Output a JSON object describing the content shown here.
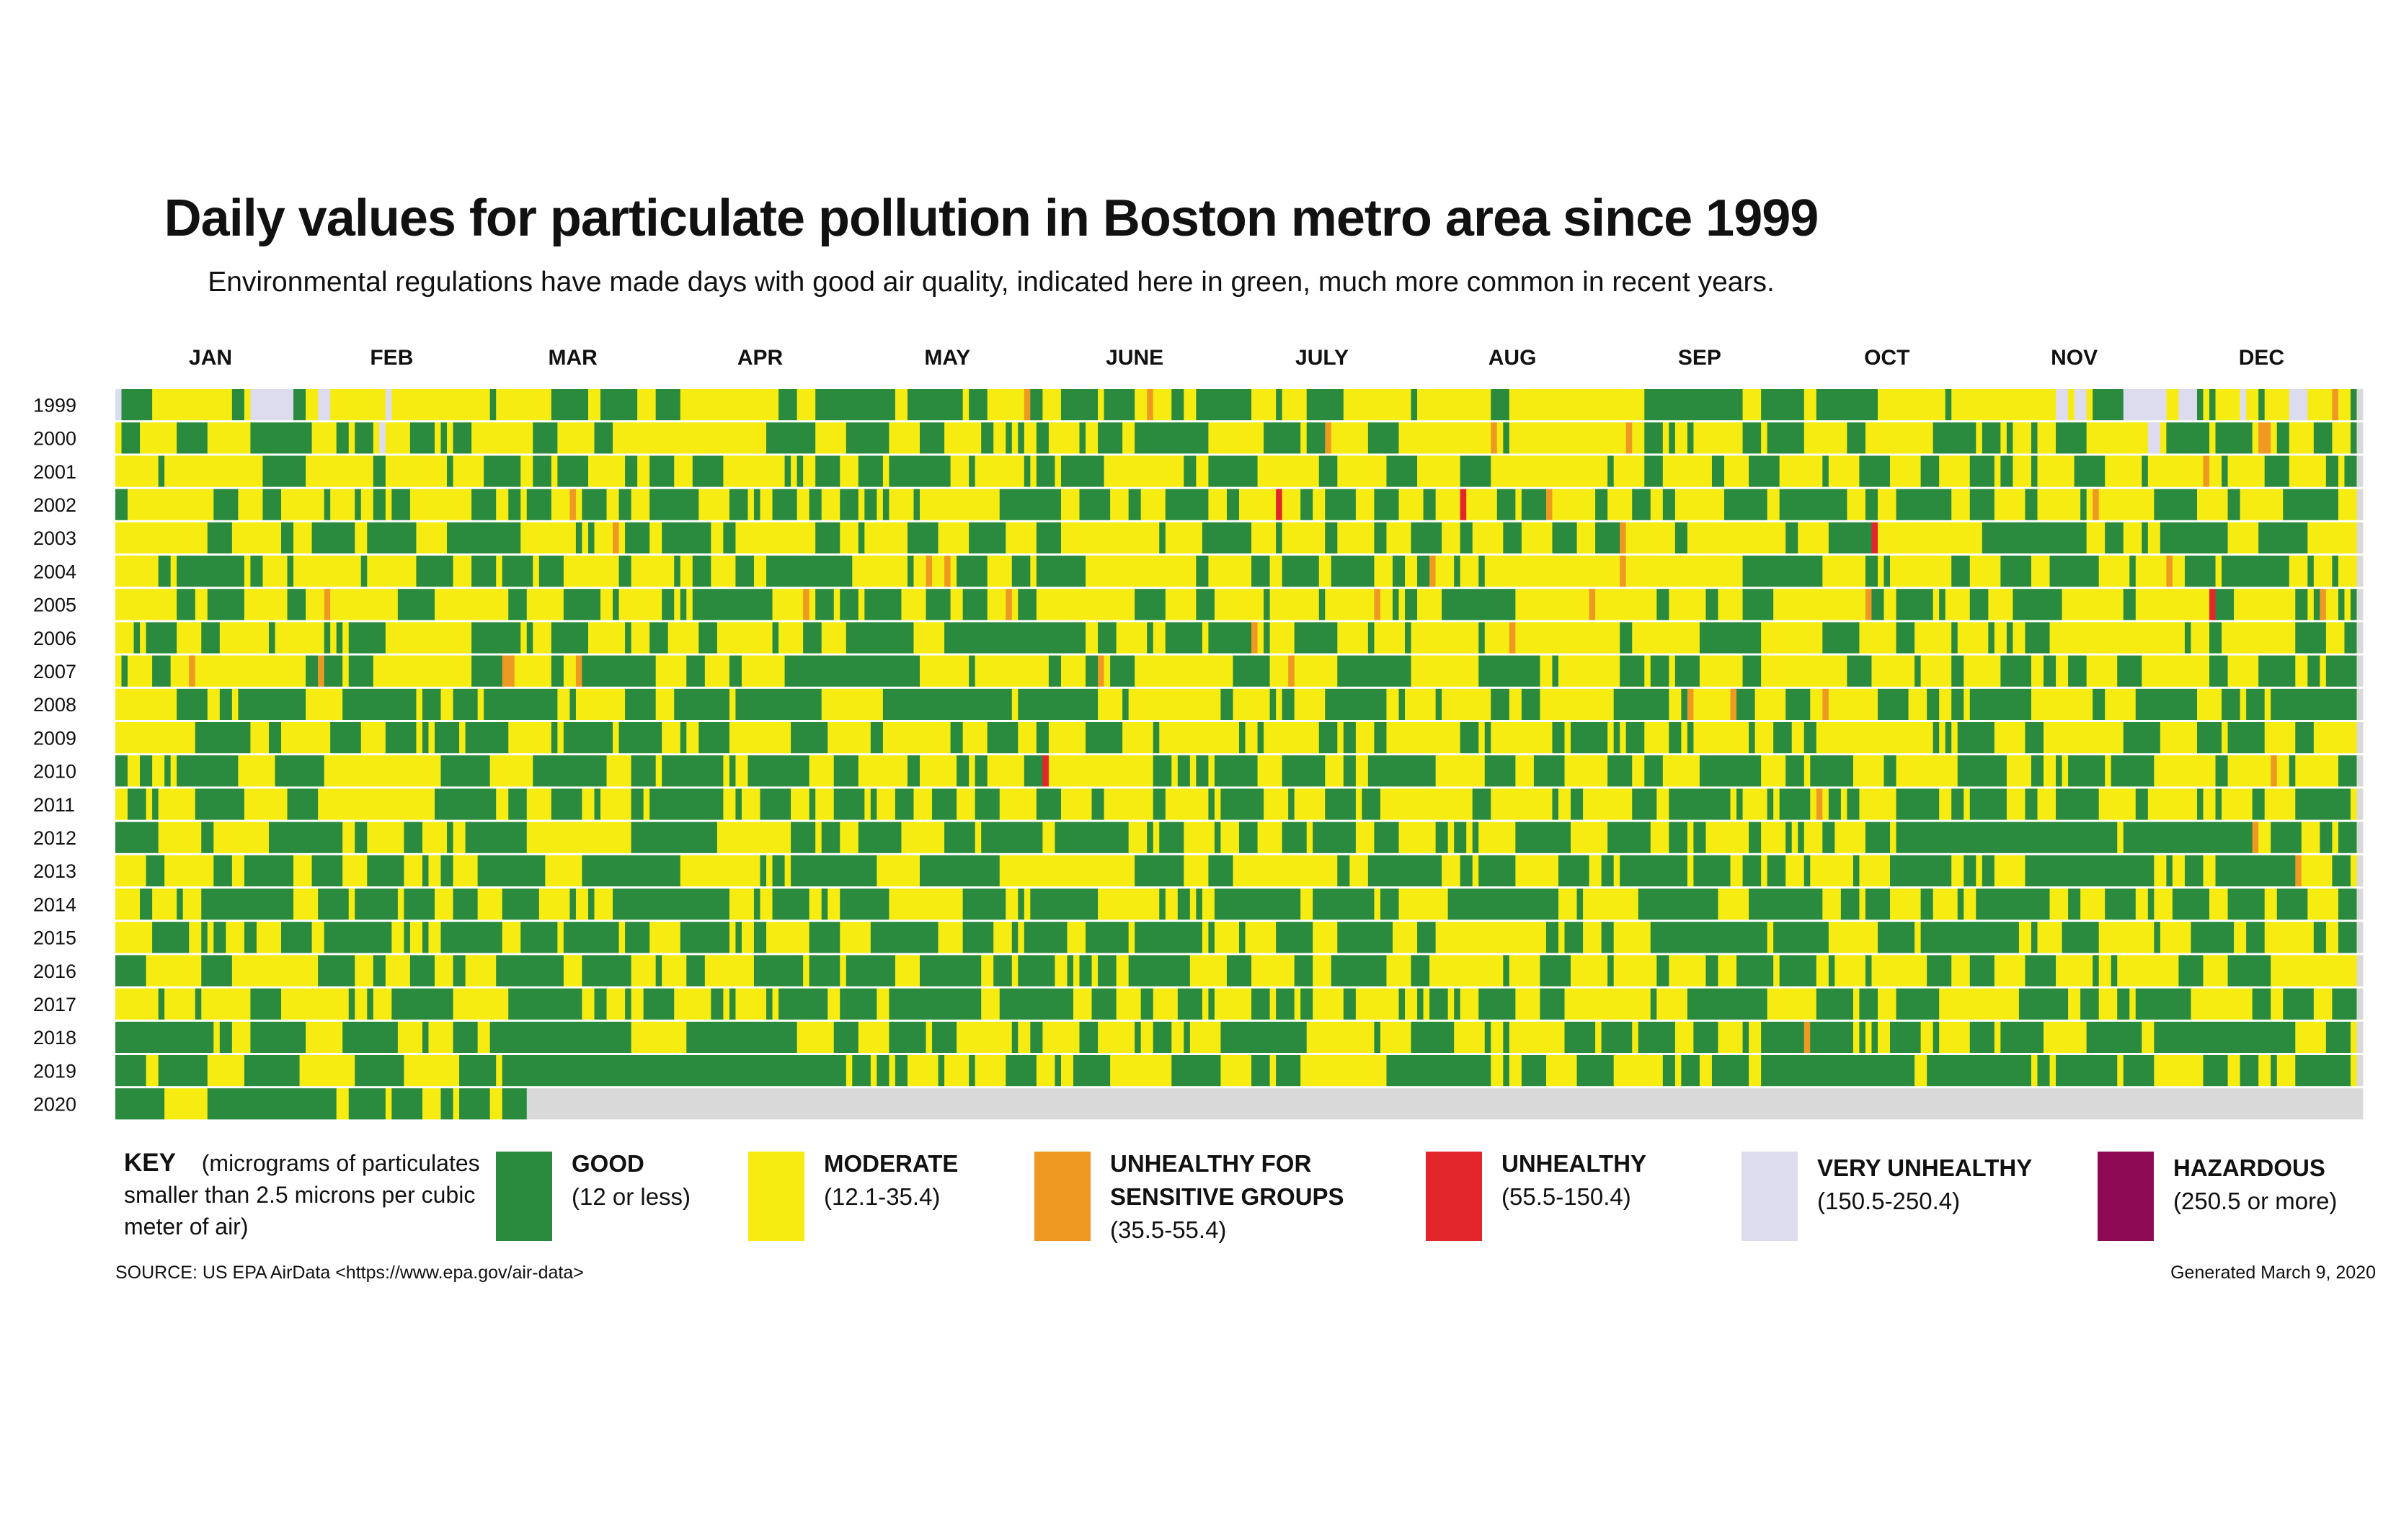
{
  "title": "Daily values for particulate pollution in Boston metro area since 1999",
  "subtitle": "Environmental regulations have made days with good air quality, indicated here in green, much more common in recent years.",
  "source": "SOURCE: US EPA AirData <https://www.epa.gov/air-data>",
  "generated": "Generated March 9, 2020",
  "key": {
    "label": "KEY",
    "description": "(micrograms of particulates smaller than 2.5 microns per cubic meter of air)"
  },
  "colors": {
    "good": "#2a8a3e",
    "moderate": "#f7ec12",
    "usg": "#ee9a22",
    "unhealthy": "#e3262b",
    "very_unhealthy": "#dcdcee",
    "hazardous": "#8e0a55",
    "no_data": "#d9d9d9"
  },
  "chart_data": {
    "type": "heatmap",
    "title": "Daily values for particulate pollution in Boston metro area since 1999",
    "subtitle": "Environmental regulations have made days with good air quality, indicated here in green, much more common in recent years.",
    "x_categories": [
      "JAN",
      "FEB",
      "MAR",
      "APR",
      "MAY",
      "JUNE",
      "JULY",
      "AUG",
      "SEP",
      "OCT",
      "NOV",
      "DEC"
    ],
    "y_categories": [
      "1999",
      "2000",
      "2001",
      "2002",
      "2003",
      "2004",
      "2005",
      "2006",
      "2007",
      "2008",
      "2009",
      "2010",
      "2011",
      "2012",
      "2013",
      "2014",
      "2015",
      "2016",
      "2017",
      "2018",
      "2019",
      "2020"
    ],
    "legend": [
      {
        "name": "GOOD",
        "range": "(12 or less)",
        "color": "#2a8a3e"
      },
      {
        "name": "MODERATE",
        "range": "(12.1-35.4)",
        "color": "#f7ec12"
      },
      {
        "name": "UNHEALTHY FOR SENSITIVE GROUPS",
        "range": "(35.5-55.4)",
        "color": "#ee9a22"
      },
      {
        "name": "UNHEALTHY",
        "range": "(55.5-150.4)",
        "color": "#e3262b"
      },
      {
        "name": "VERY UNHEALTHY",
        "range": "(150.5-250.4)",
        "color": "#dcdcee"
      },
      {
        "name": "HAZARDOUS",
        "range": "(250.5 or more)",
        "color": "#8e0a55"
      }
    ],
    "legend_placement": "bottom",
    "green_share_by_year": [
      0.42,
      0.4,
      0.4,
      0.43,
      0.4,
      0.4,
      0.4,
      0.43,
      0.42,
      0.45,
      0.48,
      0.5,
      0.5,
      0.55,
      0.55,
      0.55,
      0.55,
      0.58,
      0.52,
      0.6,
      0.7,
      0.75
    ],
    "very_unhealthy_share_by_year": [
      0.18,
      0.05,
      0.03,
      0.02,
      0,
      0,
      0,
      0,
      0,
      0,
      0,
      0,
      0,
      0,
      0,
      0,
      0,
      0,
      0,
      0,
      0,
      0
    ],
    "notable_episodes": [
      {
        "year": "2002",
        "month": "JULY",
        "category": "UNHEALTHY"
      },
      {
        "year": "2002",
        "month": "AUG",
        "category": "UNHEALTHY"
      },
      {
        "year": "2003",
        "month": "JUNE",
        "category": "UNHEALTHY"
      },
      {
        "year": "2003",
        "month": "OCT",
        "category": "UNHEALTHY"
      },
      {
        "year": "2005",
        "month": "DEC",
        "category": "UNHEALTHY"
      },
      {
        "year": "2010",
        "month": "JUNE",
        "category": "UNHEALTHY"
      },
      {
        "year": "2012",
        "month": "JULY",
        "category": "UNHEALTHY"
      }
    ],
    "last_day_with_data": "2020-03-08"
  }
}
